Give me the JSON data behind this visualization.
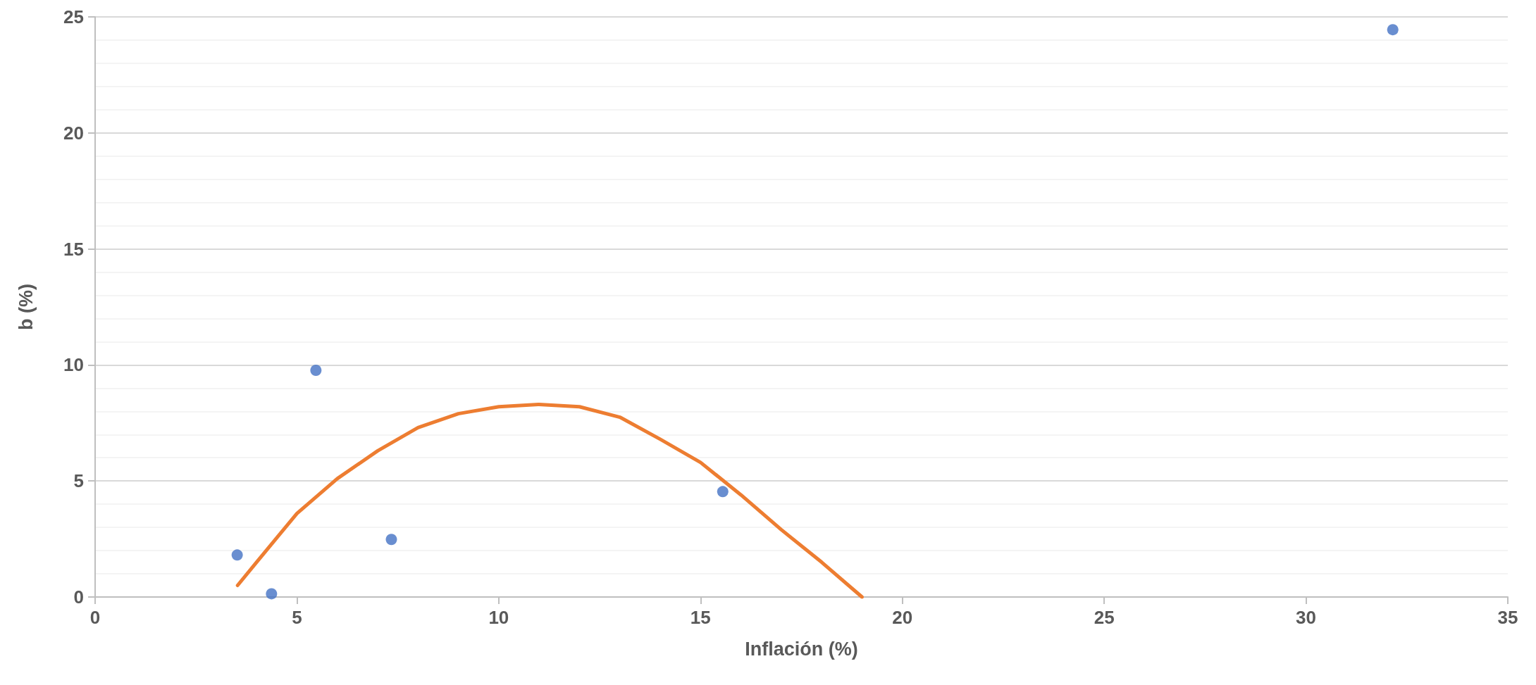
{
  "chart_data": {
    "type": "scatter",
    "xlabel": "Inflación (%)",
    "ylabel": "b (%)",
    "xlim": [
      0,
      35
    ],
    "xticks": [
      0,
      5,
      10,
      15,
      20,
      25,
      30,
      35
    ],
    "ylim": [
      0,
      25
    ],
    "yticks": [
      0,
      5,
      10,
      15,
      20,
      25
    ],
    "grid": "y",
    "series": [
      {
        "color": "#4472c4",
        "marker": "circle",
        "x": [
          3.52,
          4.37,
          5.47,
          7.34,
          15.55,
          32.15
        ],
        "values": [
          1.81,
          0.14,
          9.77,
          2.48,
          4.54,
          24.45
        ]
      },
      {
        "type": "line",
        "color": "#ed7d31",
        "marker": "none",
        "line_style": "solid",
        "x": [
          3.53,
          4,
          5,
          6,
          7,
          8,
          9,
          10,
          11,
          12,
          13,
          14,
          15,
          16,
          17,
          18,
          19
        ],
        "values": [
          0.5,
          1.5,
          3.6,
          5.1,
          6.3,
          7.3,
          7.9,
          8.2,
          8.3,
          8.2,
          7.75,
          6.8,
          5.8,
          4.4,
          2.9,
          1.5,
          0
        ]
      }
    ]
  }
}
